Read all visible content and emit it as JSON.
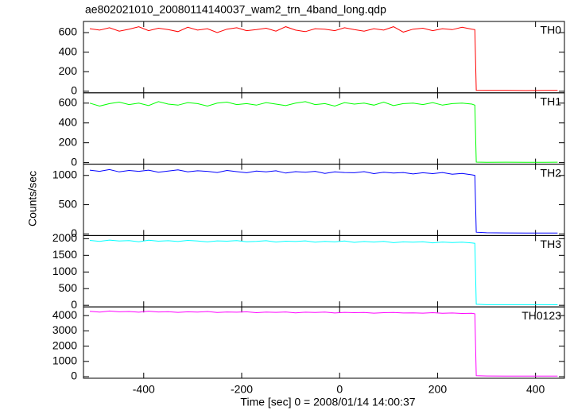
{
  "chart_data": [
    {
      "type": "line",
      "title": "ae802021010_20080114140037_wam2_trn_4band_long.qdp",
      "x": [
        -510,
        -490,
        -470,
        -450,
        -430,
        -410,
        -390,
        -370,
        -350,
        -330,
        -310,
        -290,
        -270,
        -250,
        -230,
        -210,
        -190,
        -170,
        -150,
        -130,
        -110,
        -90,
        -70,
        -50,
        -30,
        -10,
        10,
        30,
        50,
        70,
        90,
        110,
        130,
        150,
        170,
        190,
        210,
        230,
        250,
        270,
        276,
        279,
        300,
        340,
        380,
        420,
        445
      ],
      "xlim": [
        -523,
        459
      ],
      "ylim": [
        -16,
        714
      ],
      "yticks": [
        0,
        200,
        400,
        600
      ],
      "series": [
        {
          "name": "TH0",
          "color": "#ff0000",
          "values": [
            640,
            625,
            650,
            615,
            635,
            660,
            620,
            645,
            630,
            610,
            655,
            625,
            640,
            600,
            635,
            650,
            620,
            630,
            645,
            615,
            660,
            625,
            610,
            640,
            635,
            620,
            650,
            630,
            615,
            640,
            625,
            660,
            605,
            635,
            645,
            620,
            640,
            630,
            655,
            635,
            630,
            10,
            8,
            9,
            7,
            8,
            8
          ]
        }
      ]
    },
    {
      "type": "line",
      "x": [
        -510,
        -490,
        -470,
        -450,
        -430,
        -410,
        -390,
        -370,
        -350,
        -330,
        -310,
        -290,
        -270,
        -250,
        -230,
        -210,
        -190,
        -170,
        -150,
        -130,
        -110,
        -90,
        -70,
        -50,
        -30,
        -10,
        10,
        30,
        50,
        70,
        90,
        110,
        130,
        150,
        170,
        190,
        210,
        230,
        250,
        270,
        276,
        279,
        300,
        340,
        380,
        420,
        445
      ],
      "xlim": [
        -523,
        459
      ],
      "ylim": [
        -16,
        704
      ],
      "yticks": [
        0,
        200,
        400,
        600
      ],
      "series": [
        {
          "name": "TH1",
          "color": "#00ff00",
          "values": [
            600,
            570,
            595,
            610,
            585,
            600,
            575,
            615,
            590,
            580,
            605,
            595,
            570,
            600,
            610,
            585,
            595,
            580,
            605,
            590,
            575,
            600,
            615,
            585,
            595,
            570,
            605,
            590,
            600,
            580,
            610,
            575,
            595,
            600,
            585,
            605,
            580,
            595,
            600,
            590,
            580,
            5,
            3,
            4,
            3,
            3,
            4
          ]
        }
      ]
    },
    {
      "type": "line",
      "ylabel": "Counts/sec",
      "x": [
        -510,
        -490,
        -470,
        -450,
        -430,
        -410,
        -390,
        -370,
        -350,
        -330,
        -310,
        -290,
        -270,
        -250,
        -230,
        -210,
        -190,
        -170,
        -150,
        -130,
        -110,
        -90,
        -70,
        -50,
        -30,
        -10,
        10,
        30,
        50,
        70,
        90,
        110,
        130,
        150,
        170,
        190,
        210,
        230,
        250,
        270,
        276,
        279,
        300,
        340,
        380,
        420,
        445
      ],
      "xlim": [
        -523,
        459
      ],
      "ylim": [
        -27,
        1192
      ],
      "yticks": [
        0,
        500,
        1000
      ],
      "series": [
        {
          "name": "TH2",
          "color": "#0000ff",
          "values": [
            1090,
            1070,
            1100,
            1060,
            1085,
            1070,
            1090,
            1055,
            1075,
            1095,
            1060,
            1080,
            1070,
            1050,
            1085,
            1065,
            1045,
            1075,
            1060,
            1080,
            1040,
            1065,
            1055,
            1070,
            1035,
            1060,
            1050,
            1045,
            1065,
            1030,
            1055,
            1040,
            1050,
            1025,
            1045,
            1030,
            1050,
            1020,
            1035,
            1010,
            1000,
            30,
            20,
            18,
            17,
            16,
            15
          ]
        }
      ]
    },
    {
      "type": "line",
      "x": [
        -510,
        -490,
        -470,
        -450,
        -430,
        -410,
        -390,
        -370,
        -350,
        -330,
        -310,
        -290,
        -270,
        -250,
        -230,
        -210,
        -190,
        -170,
        -150,
        -130,
        -110,
        -90,
        -70,
        -50,
        -30,
        -10,
        10,
        30,
        50,
        70,
        90,
        110,
        130,
        150,
        170,
        190,
        210,
        230,
        250,
        270,
        276,
        279,
        300,
        340,
        380,
        420,
        445
      ],
      "xlim": [
        -523,
        459
      ],
      "ylim": [
        -48,
        2095
      ],
      "yticks": [
        0,
        500,
        1000,
        1500,
        2000
      ],
      "series": [
        {
          "name": "TH3",
          "color": "#00ffff",
          "values": [
            1950,
            1920,
            1960,
            1930,
            1945,
            1910,
            1955,
            1925,
            1940,
            1915,
            1950,
            1930,
            1905,
            1935,
            1925,
            1945,
            1910,
            1920,
            1940,
            1900,
            1925,
            1915,
            1935,
            1895,
            1920,
            1905,
            1930,
            1890,
            1915,
            1900,
            1920,
            1880,
            1905,
            1895,
            1910,
            1875,
            1900,
            1885,
            1895,
            1870,
            1860,
            30,
            20,
            20,
            18,
            18,
            17
          ]
        }
      ]
    },
    {
      "type": "line",
      "xlabel": "Time [sec] 0 = 2008/01/14 14:00:37",
      "x": [
        -510,
        -490,
        -470,
        -450,
        -430,
        -410,
        -390,
        -370,
        -350,
        -330,
        -310,
        -290,
        -270,
        -250,
        -230,
        -210,
        -190,
        -170,
        -150,
        -130,
        -110,
        -90,
        -70,
        -50,
        -30,
        -10,
        10,
        30,
        50,
        70,
        90,
        110,
        130,
        150,
        170,
        190,
        210,
        230,
        250,
        270,
        276,
        279,
        300,
        340,
        380,
        420,
        445
      ],
      "xlim": [
        -523,
        459
      ],
      "xticks": [
        -400,
        -200,
        0,
        200,
        400
      ],
      "ylim": [
        -104,
        4571
      ],
      "yticks": [
        0,
        1000,
        2000,
        3000,
        4000
      ],
      "series": [
        {
          "name": "TH0123",
          "color": "#ff00ff",
          "values": [
            4280,
            4230,
            4300,
            4250,
            4270,
            4220,
            4290,
            4240,
            4260,
            4210,
            4250,
            4230,
            4270,
            4200,
            4240,
            4220,
            4250,
            4190,
            4230,
            4210,
            4240,
            4180,
            4220,
            4200,
            4230,
            4170,
            4210,
            4190,
            4200,
            4160,
            4190,
            4200,
            4170,
            4180,
            4160,
            4190,
            4150,
            4170,
            4140,
            4150,
            4120,
            60,
            45,
            42,
            40,
            38,
            36
          ]
        }
      ]
    }
  ]
}
